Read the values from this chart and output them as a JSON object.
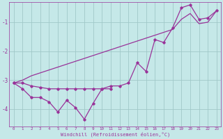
{
  "xlabel": "Windchill (Refroidissement éolien,°C)",
  "background_color": "#c5e8e8",
  "grid_color": "#a0c8c8",
  "line_color": "#993399",
  "x_data": [
    0,
    1,
    2,
    3,
    4,
    5,
    6,
    7,
    8,
    9,
    10,
    11,
    12,
    13,
    14,
    15,
    16,
    17,
    18,
    19,
    20,
    21,
    22,
    23
  ],
  "line1_x": [
    0,
    1,
    2,
    3,
    4,
    5,
    6,
    7,
    8,
    9,
    10,
    11
  ],
  "line1_y": [
    -3.1,
    -3.1,
    -3.2,
    -3.25,
    -3.3,
    -3.3,
    -3.3,
    -3.3,
    -3.3,
    -3.3,
    -3.3,
    -3.3
  ],
  "line2_y": [
    -3.1,
    -3.3,
    -3.6,
    -3.6,
    -3.75,
    -4.1,
    -3.7,
    -3.95,
    -4.35,
    -3.8,
    -3.3,
    -3.2,
    -3.2,
    -3.1,
    -2.4,
    -2.7,
    -1.6,
    -1.7,
    -1.2,
    -0.5,
    -0.4,
    -0.9,
    -0.85,
    -0.6
  ],
  "line3_y": [
    -3.1,
    -3.0,
    -2.85,
    -2.75,
    -2.65,
    -2.55,
    -2.45,
    -2.35,
    -2.25,
    -2.15,
    -2.05,
    -1.95,
    -1.85,
    -1.75,
    -1.65,
    -1.55,
    -1.45,
    -1.35,
    -1.25,
    -0.9,
    -0.7,
    -1.05,
    -1.0,
    -0.6
  ],
  "ylim": [
    -4.6,
    -0.3
  ],
  "xlim": [
    -0.5,
    23.5
  ],
  "yticks": [
    -4,
    -3,
    -2,
    -1
  ],
  "xticks": [
    0,
    1,
    2,
    3,
    4,
    5,
    6,
    7,
    8,
    9,
    10,
    11,
    12,
    13,
    14,
    15,
    16,
    17,
    18,
    19,
    20,
    21,
    22,
    23
  ],
  "xlabel_fontsize": 5.0,
  "ytick_fontsize": 5.5,
  "xtick_fontsize": 4.2
}
